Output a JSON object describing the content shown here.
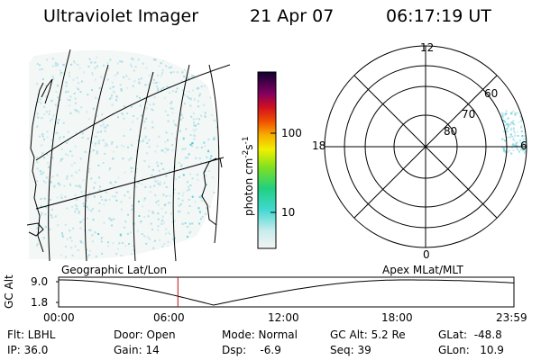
{
  "header": {
    "title": "Ultraviolet Imager",
    "date": "21 Apr 07",
    "time": "06:17:19 UT"
  },
  "colorbar": {
    "label": "photon cm",
    "exponent1": "-2",
    "unit_s": "s",
    "exponent2": "-1",
    "ticks": [
      "100",
      "10"
    ]
  },
  "polar_plot": {
    "mlt_labels": {
      "top": "12",
      "left": "18",
      "right": "6",
      "bottom": "0"
    },
    "lat_labels": [
      "60",
      "70",
      "80"
    ]
  },
  "timeline": {
    "ylabel": "GC Alt",
    "left_title": "Geographic Lat/Lon",
    "right_title": "Apex  MLat/MLT",
    "ytick_top": "9.0",
    "ytick_bottom": "1.8",
    "xticks": [
      "00:00",
      "06:00",
      "12:00",
      "18:00",
      "23:59"
    ],
    "current_time_fraction": 0.262
  },
  "status": {
    "filter": "Flt: LBHL",
    "ip": "IP: 36.0",
    "door": "Door: Open",
    "gain": "Gain: 14",
    "mode": "Mode: Normal",
    "dsp": "Dsp:    -6.9",
    "gc_alt": "GC Alt: 5.2 Re",
    "seq": "Seq: 39",
    "glat": "GLat:  -48.8",
    "glon": "GLon:   10.9"
  },
  "colors": {
    "earth_fill": "#e8f0ee",
    "speckle": "#9ad8e0",
    "speckle_bright": "#36c8d8",
    "marker": "#c01010"
  }
}
